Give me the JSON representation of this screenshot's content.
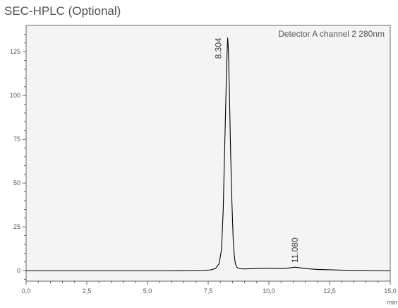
{
  "chart_data": {
    "type": "line",
    "title": "SEC-HPLC (Optional)",
    "annotation": "Detector A channel 2 280nm",
    "xlabel": "min",
    "ylabel": "",
    "xlim": [
      0,
      15
    ],
    "ylim": [
      -6,
      140
    ],
    "x_ticks": [
      0,
      2.5,
      5,
      7.5,
      10,
      12.5,
      15
    ],
    "x_tick_labels": [
      "0,0",
      "2,5",
      "5,0",
      "7,5",
      "10,0",
      "12,5",
      "15,0"
    ],
    "y_ticks": [
      0,
      25,
      50,
      75,
      100,
      125
    ],
    "y_tick_labels": [
      "0",
      "25",
      "50",
      "75",
      "100",
      "125"
    ],
    "grid": false,
    "series": [
      {
        "x": [
          0,
          2,
          4,
          6,
          6.8,
          7.3,
          7.6,
          7.8,
          7.95,
          8.05,
          8.12,
          8.18,
          8.24,
          8.28,
          8.304,
          8.33,
          8.37,
          8.42,
          8.48,
          8.53,
          8.58,
          8.62,
          8.68,
          8.75,
          8.85,
          9.0,
          9.5,
          10.0,
          10.5,
          10.8,
          11.08,
          11.3,
          11.6,
          12.0,
          13.0,
          14.0,
          15.0
        ],
        "y": [
          0,
          0,
          0,
          0,
          0.1,
          0.2,
          0.4,
          1.2,
          4,
          12,
          35,
          70,
          105,
          125,
          133,
          127,
          105,
          70,
          38,
          18,
          8,
          4,
          2,
          1.3,
          1.1,
          1.0,
          1.2,
          1.4,
          1.2,
          1.5,
          2.0,
          1.6,
          1.1,
          0.7,
          0.3,
          0.1,
          0
        ]
      }
    ],
    "peaks": [
      {
        "x": 8.304,
        "y": 133,
        "label": "8.304"
      },
      {
        "x": 11.08,
        "y": 2.0,
        "label": "11.080"
      }
    ],
    "colors": {
      "line": "#000000",
      "plot_background": "#f4f4f4",
      "axis": "#444444"
    }
  }
}
